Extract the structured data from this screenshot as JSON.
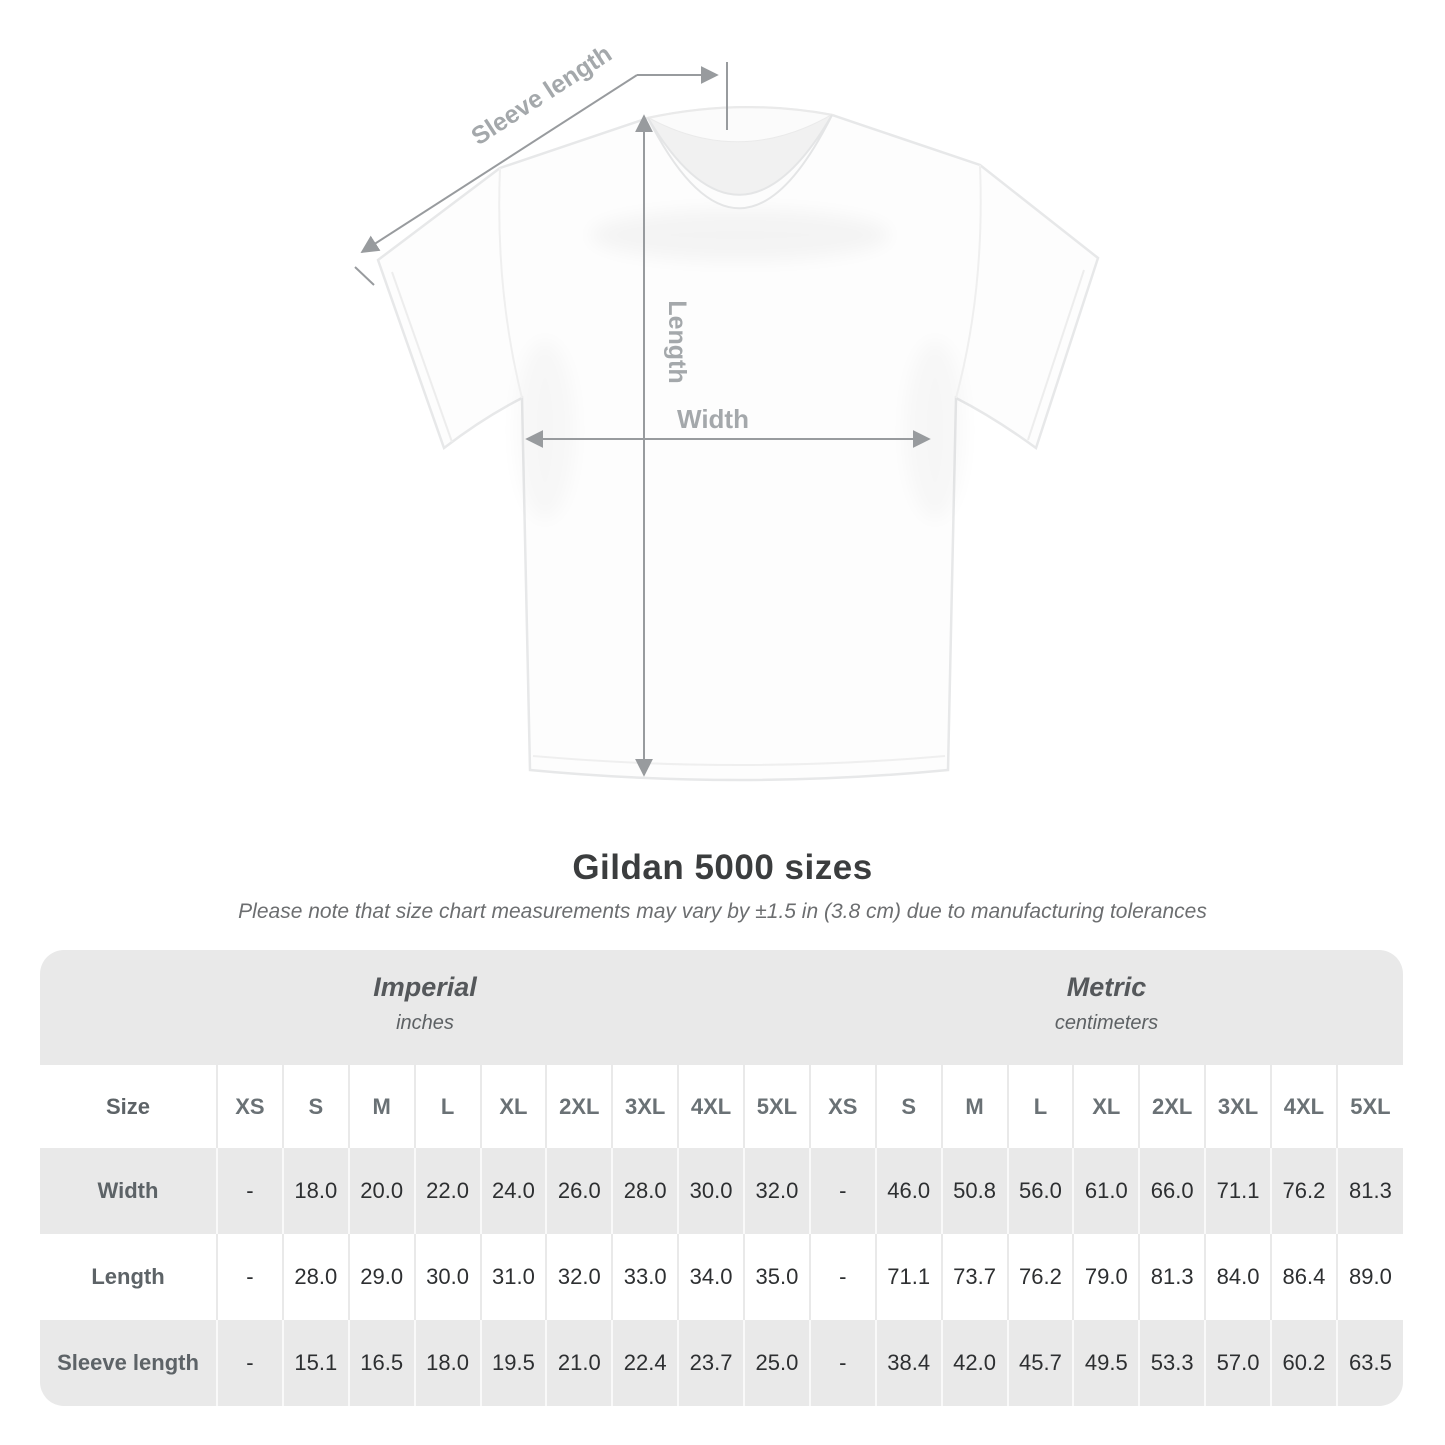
{
  "shirt_diagram": {
    "sleeve_length_label": "Sleeve length",
    "length_label": "Length",
    "width_label": "Width"
  },
  "title": "Gildan 5000 sizes",
  "subtitle": "Please note that size chart measurements may vary by ±1.5 in (3.8 cm) due to manufacturing tolerances",
  "size_table": {
    "unit_groups": [
      {
        "label": "Imperial",
        "sublabel": "inches"
      },
      {
        "label": "Metric",
        "sublabel": "centimeters"
      }
    ],
    "size_column_header": "Size",
    "size_headers": [
      "XS",
      "S",
      "M",
      "L",
      "XL",
      "2XL",
      "3XL",
      "4XL",
      "5XL"
    ],
    "rows": [
      {
        "label": "Width",
        "imperial": [
          "-",
          "18.0",
          "20.0",
          "22.0",
          "24.0",
          "26.0",
          "28.0",
          "30.0",
          "32.0"
        ],
        "metric": [
          "-",
          "46.0",
          "50.8",
          "56.0",
          "61.0",
          "66.0",
          "71.1",
          "76.2",
          "81.3"
        ]
      },
      {
        "label": "Length",
        "imperial": [
          "-",
          "28.0",
          "29.0",
          "30.0",
          "31.0",
          "32.0",
          "33.0",
          "34.0",
          "35.0"
        ],
        "metric": [
          "-",
          "71.1",
          "73.7",
          "76.2",
          "79.0",
          "81.3",
          "84.0",
          "86.4",
          "89.0"
        ]
      },
      {
        "label": "Sleeve length",
        "imperial": [
          "-",
          "15.1",
          "16.5",
          "18.0",
          "19.5",
          "21.0",
          "22.4",
          "23.7",
          "25.0"
        ],
        "metric": [
          "-",
          "38.4",
          "42.0",
          "45.7",
          "49.5",
          "53.3",
          "57.0",
          "60.2",
          "63.5"
        ]
      }
    ]
  },
  "colors": {
    "row_gray": "#e9e9e9",
    "measure_line": "#989b9e",
    "measure_label": "#a4a8ab",
    "title_text": "#3b3d3e"
  }
}
